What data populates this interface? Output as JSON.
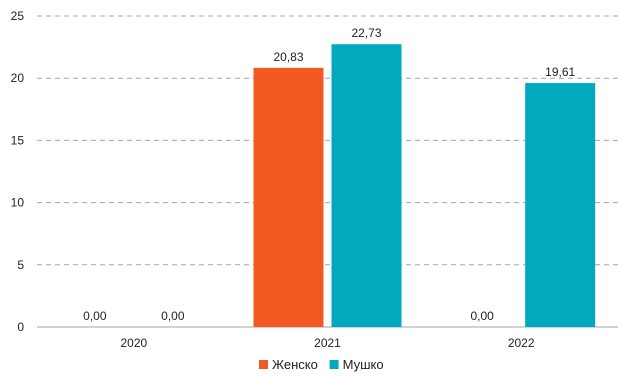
{
  "chart_data": {
    "type": "bar",
    "categories": [
      "2020",
      "2021",
      "2022"
    ],
    "series": [
      {
        "name": "Женско",
        "color": "#f15a22",
        "values": [
          0,
          20.83,
          0
        ],
        "labels": [
          "0,00",
          "20,83",
          "0,00"
        ]
      },
      {
        "name": "Мушко",
        "color": "#00a9be",
        "values": [
          0,
          22.73,
          19.61
        ],
        "labels": [
          "0,00",
          "22,73",
          "19,61"
        ]
      }
    ],
    "ylim": [
      0,
      25
    ],
    "yticks": [
      0,
      5,
      10,
      15,
      20,
      25
    ],
    "ytick_labels": [
      "0",
      "5",
      "10",
      "15",
      "20",
      "25"
    ],
    "grid": true,
    "legend_position": "bottom",
    "title": "",
    "xlabel": "",
    "ylabel": ""
  }
}
